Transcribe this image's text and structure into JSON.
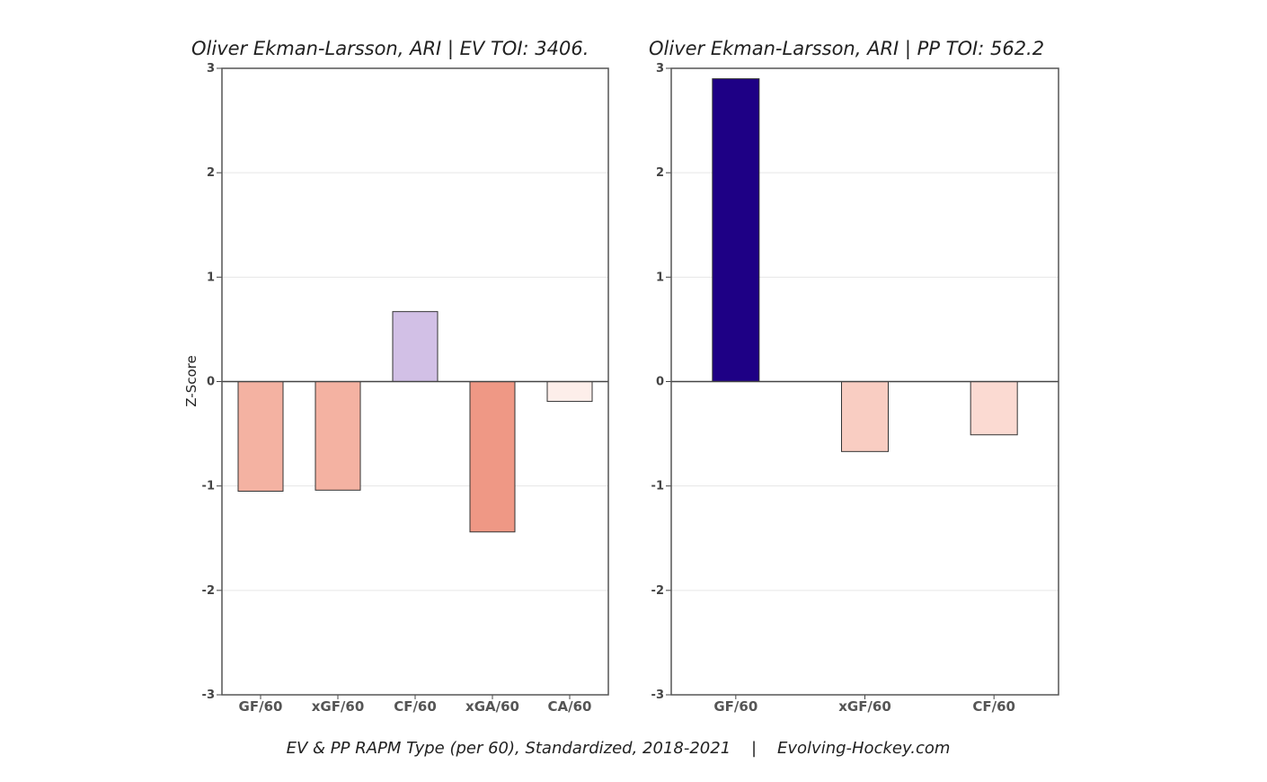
{
  "footer": "EV & PP RAPM Type (per 60), Standardized, 2018-2021    |    Evolving-Hockey.com",
  "chart_data": [
    {
      "type": "bar",
      "title": "Oliver Ekman-Larsson, ARI  |  EV TOI: 3406.",
      "ylabel": "Z-Score",
      "ylim": [
        -3,
        3
      ],
      "yticks": [
        3,
        2,
        1,
        0,
        -1,
        -2,
        -3
      ],
      "grid": true,
      "categories": [
        "GF/60",
        "xGF/60",
        "CF/60",
        "xGA/60",
        "CA/60"
      ],
      "values": [
        -1.05,
        -1.04,
        0.67,
        -1.44,
        -0.19
      ],
      "colors": [
        "#f4b2a2",
        "#f4b2a2",
        "#d2c0e6",
        "#ef9885",
        "#fdeeea"
      ]
    },
    {
      "type": "bar",
      "title": "Oliver Ekman-Larsson, ARI  |  PP TOI: 562.2",
      "ylabel": "",
      "ylim": [
        -3,
        3
      ],
      "yticks": [
        3,
        2,
        1,
        0,
        -1,
        -2,
        -3
      ],
      "grid": true,
      "categories": [
        "GF/60",
        "xGF/60",
        "CF/60"
      ],
      "values": [
        2.9,
        -0.67,
        -0.51
      ],
      "colors": [
        "#1e0085",
        "#f9cdc2",
        "#fbdad2"
      ]
    }
  ]
}
